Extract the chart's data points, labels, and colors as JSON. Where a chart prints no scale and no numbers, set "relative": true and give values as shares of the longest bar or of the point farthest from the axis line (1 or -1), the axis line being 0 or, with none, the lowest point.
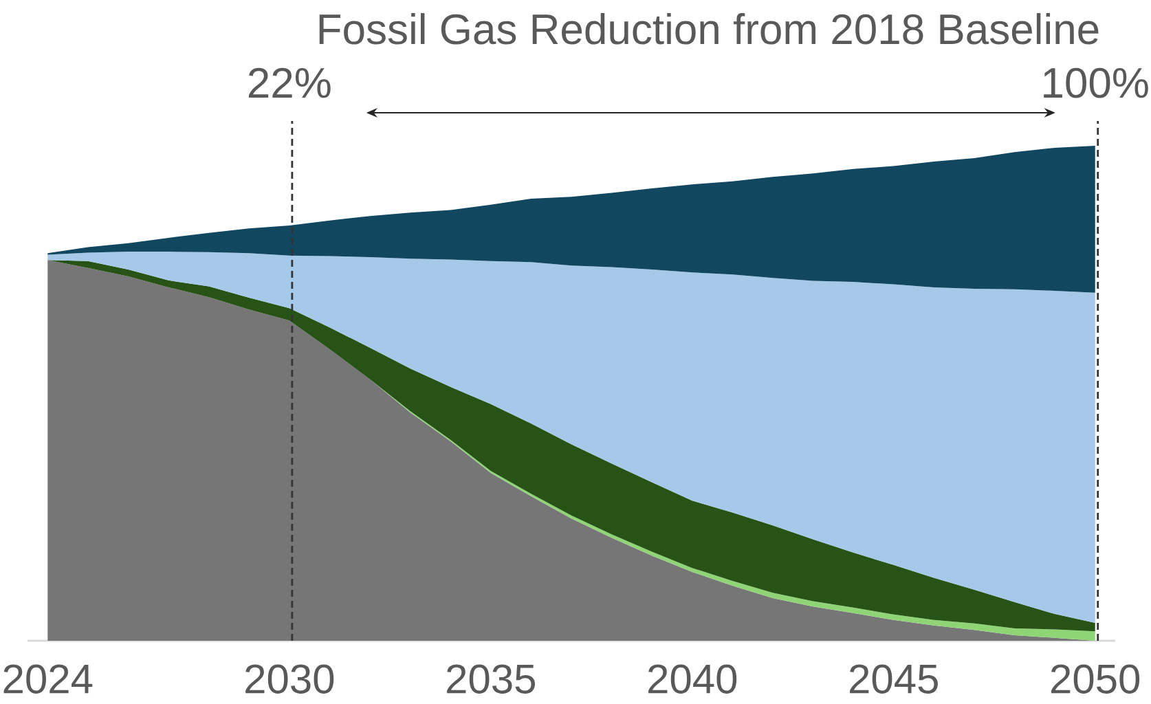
{
  "chart_data": {
    "type": "area",
    "title": "Fossil Gas Reduction from 2018 Baseline",
    "relative": true,
    "stacked": true,
    "x": [
      2024,
      2025,
      2026,
      2027,
      2028,
      2029,
      2030,
      2031,
      2032,
      2033,
      2034,
      2035,
      2036,
      2037,
      2038,
      2039,
      2040,
      2041,
      2042,
      2043,
      2044,
      2045,
      2046,
      2047,
      2048,
      2049,
      2050
    ],
    "xlim": [
      2023.5,
      2050.5
    ],
    "xticks": [
      2024,
      2030,
      2035,
      2040,
      2045,
      2050
    ],
    "series": [
      {
        "color": "#767676",
        "values": [
          0.769,
          0.753,
          0.736,
          0.714,
          0.694,
          0.669,
          0.647,
          0.589,
          0.528,
          0.461,
          0.403,
          0.339,
          0.292,
          0.247,
          0.208,
          0.172,
          0.139,
          0.111,
          0.086,
          0.069,
          0.056,
          0.042,
          0.031,
          0.022,
          0.011,
          0.006,
          0
        ]
      },
      {
        "color": "#8fd475",
        "values": [
          null,
          null,
          null,
          null,
          null,
          null,
          null,
          null,
          0,
          0.003,
          0.003,
          0.004,
          0.005,
          0.006,
          0.007,
          0.008,
          0.008,
          0.01,
          0.011,
          0.011,
          0.011,
          0.011,
          0.011,
          0.013,
          0.014,
          0.017,
          0.019
        ]
      },
      {
        "color": "#275317",
        "values": [
          0,
          0.014,
          0.014,
          0.014,
          0.022,
          0.024,
          0.025,
          0.044,
          0.064,
          0.086,
          0.107,
          0.135,
          0.142,
          0.144,
          0.143,
          0.14,
          0.136,
          0.138,
          0.136,
          0.125,
          0.111,
          0.1,
          0.085,
          0.068,
          0.053,
          0.031,
          0.017
        ]
      },
      {
        "color": "#a6c9ea",
        "values": [
          0.011,
          0.017,
          0.036,
          0.058,
          0.069,
          0.09,
          0.106,
          0.144,
          0.183,
          0.222,
          0.257,
          0.289,
          0.326,
          0.361,
          0.397,
          0.43,
          0.461,
          0.481,
          0.5,
          0.522,
          0.547,
          0.567,
          0.587,
          0.608,
          0.632,
          0.653,
          0.667
        ]
      },
      {
        "color": "#11475f",
        "values": [
          0.003,
          0.011,
          0.017,
          0.028,
          0.039,
          0.05,
          0.061,
          0.072,
          0.083,
          0.093,
          0.1,
          0.114,
          0.128,
          0.139,
          0.15,
          0.164,
          0.178,
          0.188,
          0.204,
          0.217,
          0.228,
          0.239,
          0.254,
          0.264,
          0.277,
          0.289,
          0.297
        ]
      }
    ],
    "ref_lines": [
      {
        "axis": "x",
        "value": 2030,
        "color": "#333333",
        "line_style": "dashed"
      },
      {
        "axis": "x",
        "value": 2050,
        "color": "#333333",
        "line_style": "dashed"
      }
    ],
    "annotations": [
      "22%",
      "100%"
    ]
  }
}
